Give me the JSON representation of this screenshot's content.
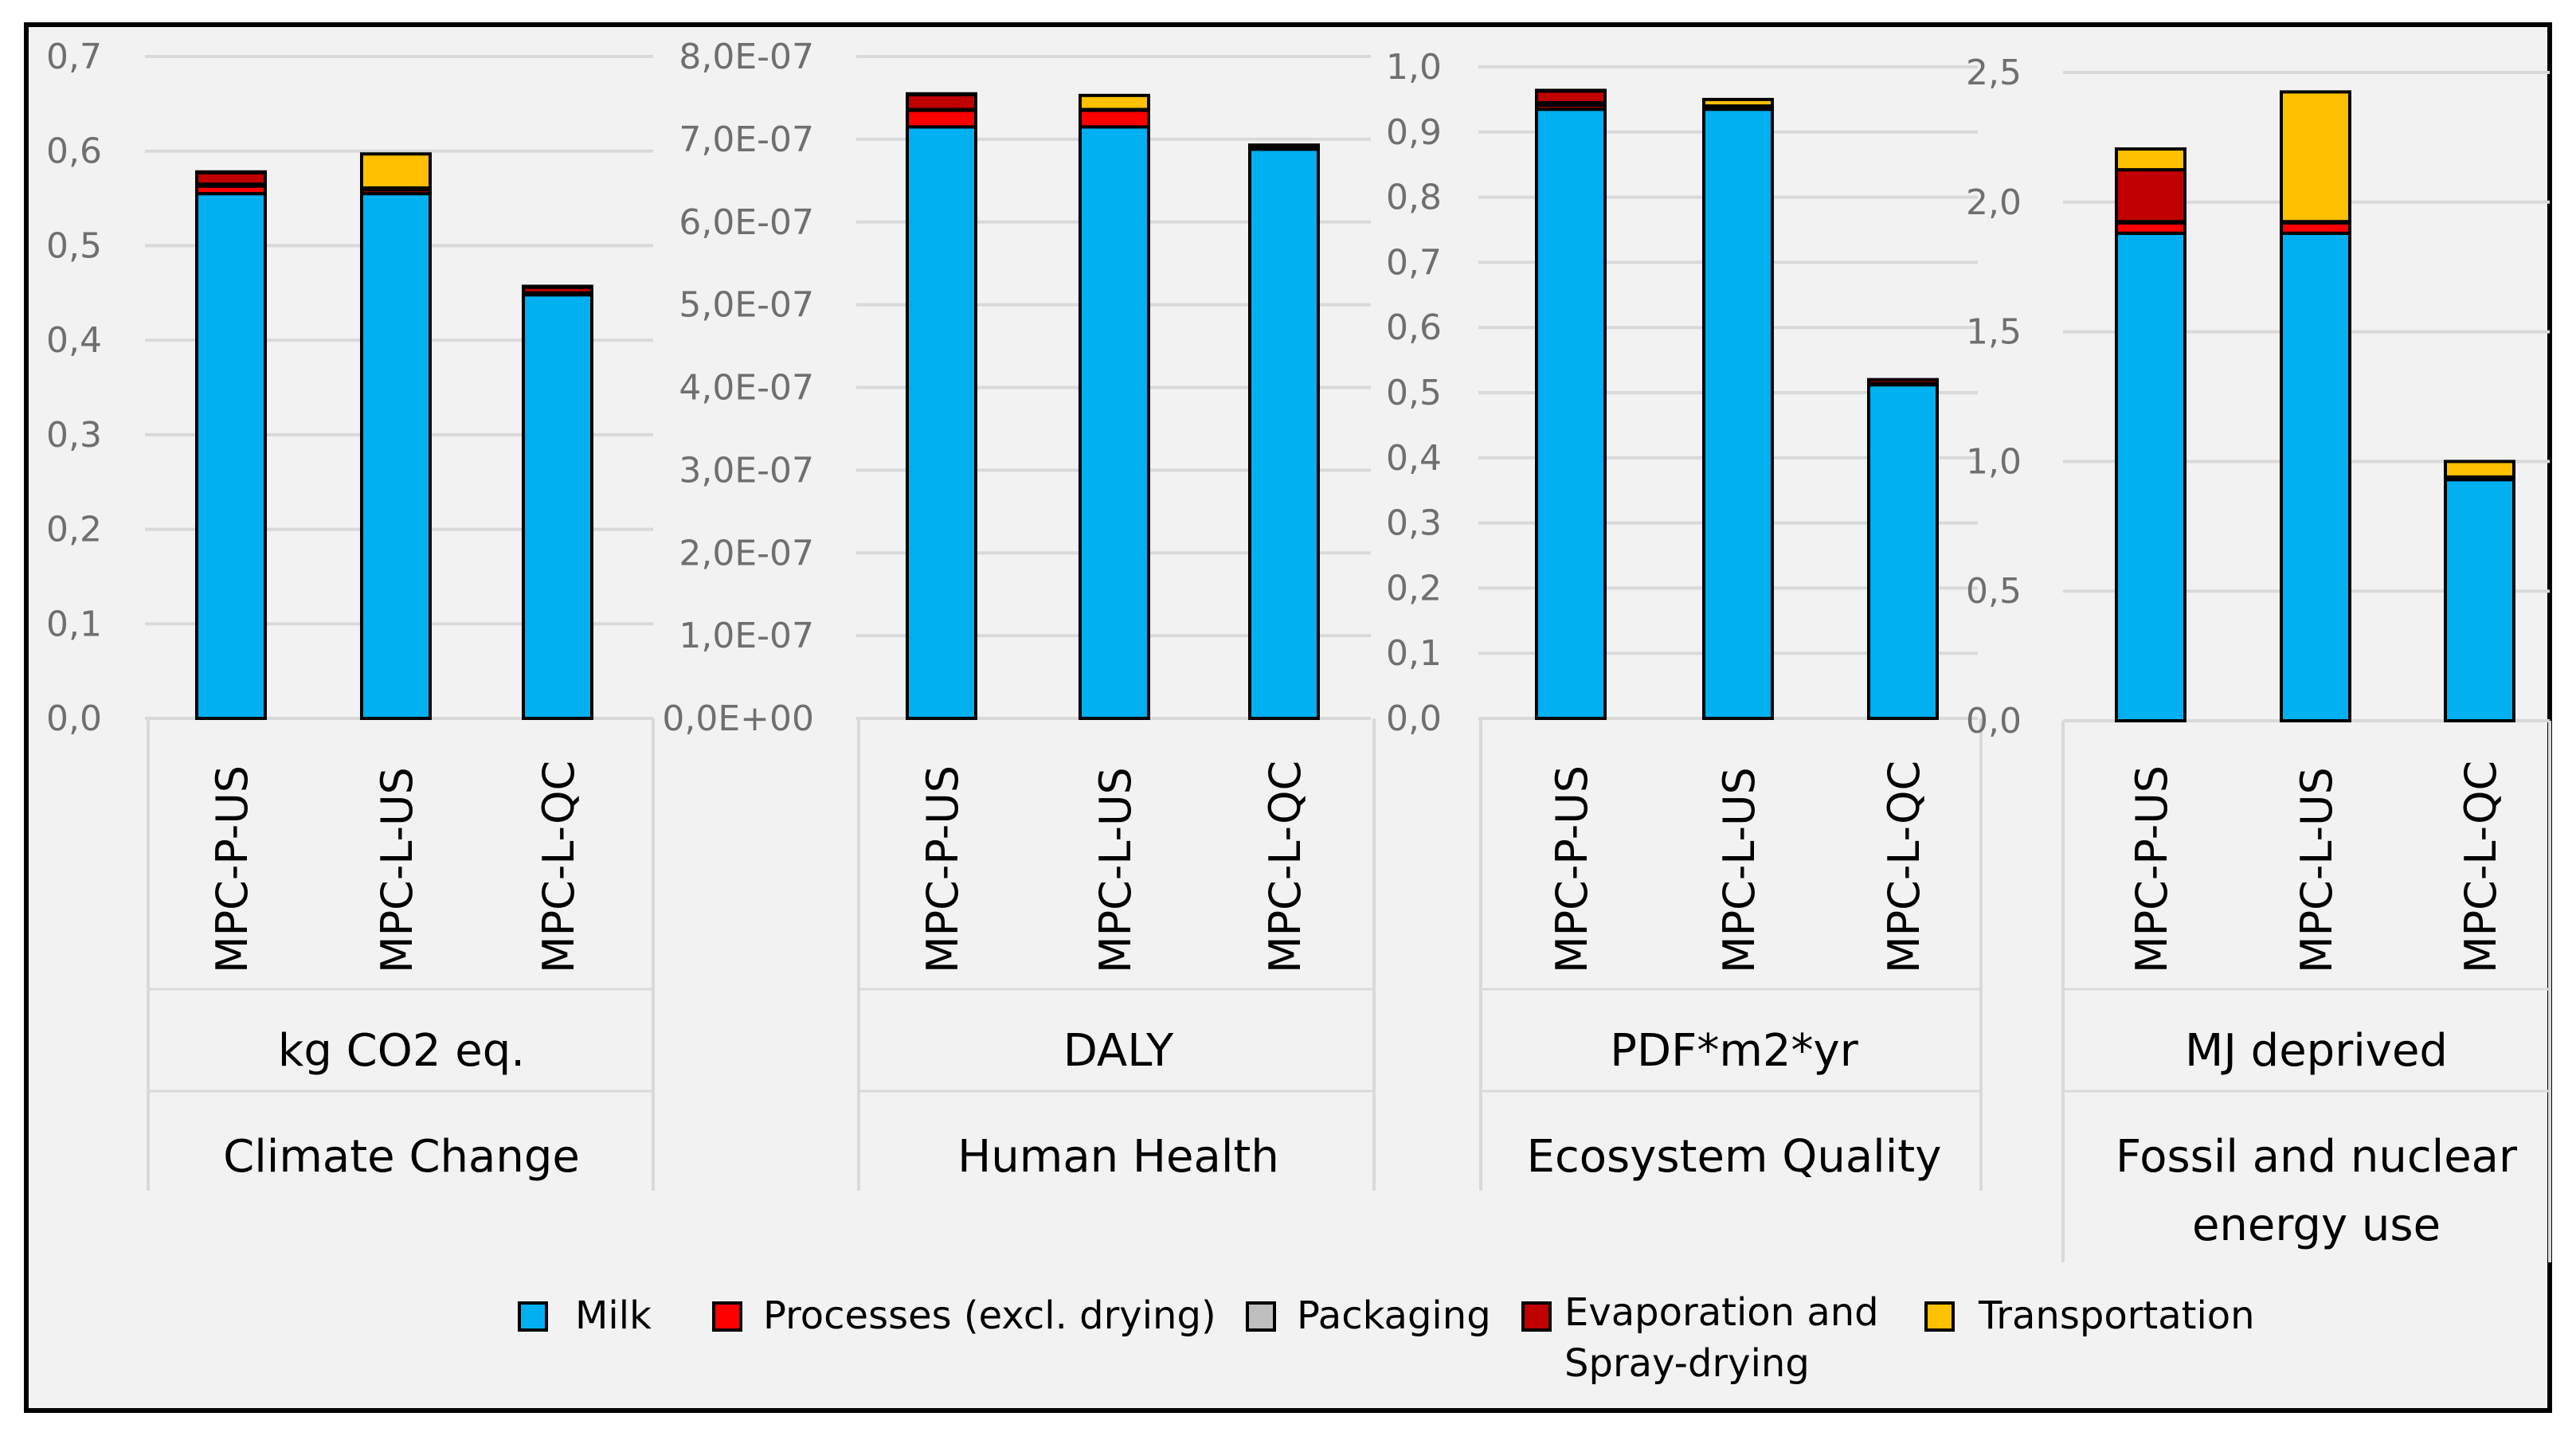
{
  "colors": {
    "background": "#f2f2f2",
    "frame": "#000000",
    "grid": "#d9d9d9",
    "bar_outline": "#000000",
    "milk": "#00b0f0",
    "processes": "#ff0000",
    "packaging": "#bfbfbf",
    "evaporation": "#c00000",
    "transportation": "#ffc000"
  },
  "legend": [
    {
      "key": "milk",
      "label": "Milk"
    },
    {
      "key": "processes",
      "label": "Processes (excl. drying)"
    },
    {
      "key": "packaging",
      "label": "Packaging"
    },
    {
      "key": "evaporation",
      "label_lines": [
        "Evaporation and",
        "Spray-drying"
      ]
    },
    {
      "key": "transportation",
      "label": "Transportation"
    }
  ],
  "chart_data": [
    {
      "type": "bar",
      "stacked": true,
      "categories": [
        "MPC-P-US",
        "MPC-L-US",
        "MPC-L-QC"
      ],
      "unit": "kg CO2 eq.",
      "title_lines": [
        "Climate Change"
      ],
      "ylim": [
        0,
        0.7
      ],
      "ytick_labels": [
        "0,0",
        "0,1",
        "0,2",
        "0,3",
        "0,4",
        "0,5",
        "0,6",
        "0,7"
      ],
      "series": [
        {
          "name": "Milk",
          "key": "milk",
          "values": [
            0.555,
            0.555,
            0.448
          ]
        },
        {
          "name": "Processes (excl. drying)",
          "key": "processes",
          "values": [
            0.008,
            0.004,
            0.0
          ]
        },
        {
          "name": "Packaging",
          "key": "packaging",
          "values": [
            0.002,
            0.002,
            0.002
          ]
        },
        {
          "name": "Evaporation and Spray-drying",
          "key": "evaporation",
          "values": [
            0.012,
            0.0,
            0.006
          ]
        },
        {
          "name": "Transportation",
          "key": "transportation",
          "values": [
            0.001,
            0.036,
            0.001
          ]
        }
      ]
    },
    {
      "type": "bar",
      "stacked": true,
      "categories": [
        "MPC-P-US",
        "MPC-L-US",
        "MPC-L-QC"
      ],
      "unit": "DALY",
      "title_lines": [
        "Human Health"
      ],
      "ylim": [
        0,
        8e-07
      ],
      "ytick_labels": [
        "0,0E+00",
        "1,0E-07",
        "2,0E-07",
        "3,0E-07",
        "4,0E-07",
        "5,0E-07",
        "6,0E-07",
        "7,0E-07",
        "8,0E-07"
      ],
      "series": [
        {
          "name": "Milk",
          "key": "milk",
          "values": [
            7.15e-07,
            7.15e-07,
            6.88e-07
          ]
        },
        {
          "name": "Processes (excl. drying)",
          "key": "processes",
          "values": [
            2e-08,
            2e-08,
            0.0
          ]
        },
        {
          "name": "Packaging",
          "key": "packaging",
          "values": [
            1e-09,
            1e-09,
            1e-09
          ]
        },
        {
          "name": "Evaporation and Spray-drying",
          "key": "evaporation",
          "values": [
            1.8e-08,
            0.0,
            3e-09
          ]
        },
        {
          "name": "Transportation",
          "key": "transportation",
          "values": [
            1e-09,
            1.7e-08,
            1e-09
          ]
        }
      ]
    },
    {
      "type": "bar",
      "stacked": true,
      "categories": [
        "MPC-P-US",
        "MPC-L-US",
        "MPC-L-QC"
      ],
      "unit": "PDF*m2*yr",
      "title_lines": [
        "Ecosystem Quality"
      ],
      "ylim": [
        0,
        1.0
      ],
      "ytick_labels": [
        "0,0",
        "0,1",
        "0,2",
        "0,3",
        "0,4",
        "0,5",
        "0,6",
        "0,7",
        "0,8",
        "0,9",
        "1,0"
      ],
      "series": [
        {
          "name": "Milk",
          "key": "milk",
          "values": [
            0.935,
            0.935,
            0.512
          ]
        },
        {
          "name": "Processes (excl. drying)",
          "key": "processes",
          "values": [
            0.006,
            0.003,
            0.0
          ]
        },
        {
          "name": "Packaging",
          "key": "packaging",
          "values": [
            0.004,
            0.002,
            0.002
          ]
        },
        {
          "name": "Evaporation and Spray-drying",
          "key": "evaporation",
          "values": [
            0.018,
            0.0,
            0.006
          ]
        },
        {
          "name": "Transportation",
          "key": "transportation",
          "values": [
            0.001,
            0.01,
            0.0
          ]
        }
      ]
    },
    {
      "type": "bar",
      "stacked": true,
      "categories": [
        "MPC-P-US",
        "MPC-L-US",
        "MPC-L-QC"
      ],
      "unit": "MJ deprived",
      "title_lines": [
        "Fossil and nuclear",
        "energy use"
      ],
      "ylim": [
        0,
        2.5
      ],
      "ytick_labels": [
        "0,0",
        "0,5",
        "1,0",
        "1,5",
        "2,0",
        "2,5"
      ],
      "series": [
        {
          "name": "Milk",
          "key": "milk",
          "values": [
            1.88,
            1.88,
            0.93
          ]
        },
        {
          "name": "Processes (excl. drying)",
          "key": "processes",
          "values": [
            0.04,
            0.04,
            0.0
          ]
        },
        {
          "name": "Packaging",
          "key": "packaging",
          "values": [
            0.005,
            0.005,
            0.005
          ]
        },
        {
          "name": "Evaporation and Spray-drying",
          "key": "evaporation",
          "values": [
            0.2,
            0.0,
            0.005
          ]
        },
        {
          "name": "Transportation",
          "key": "transportation",
          "values": [
            0.08,
            0.5,
            0.06
          ]
        }
      ]
    }
  ]
}
